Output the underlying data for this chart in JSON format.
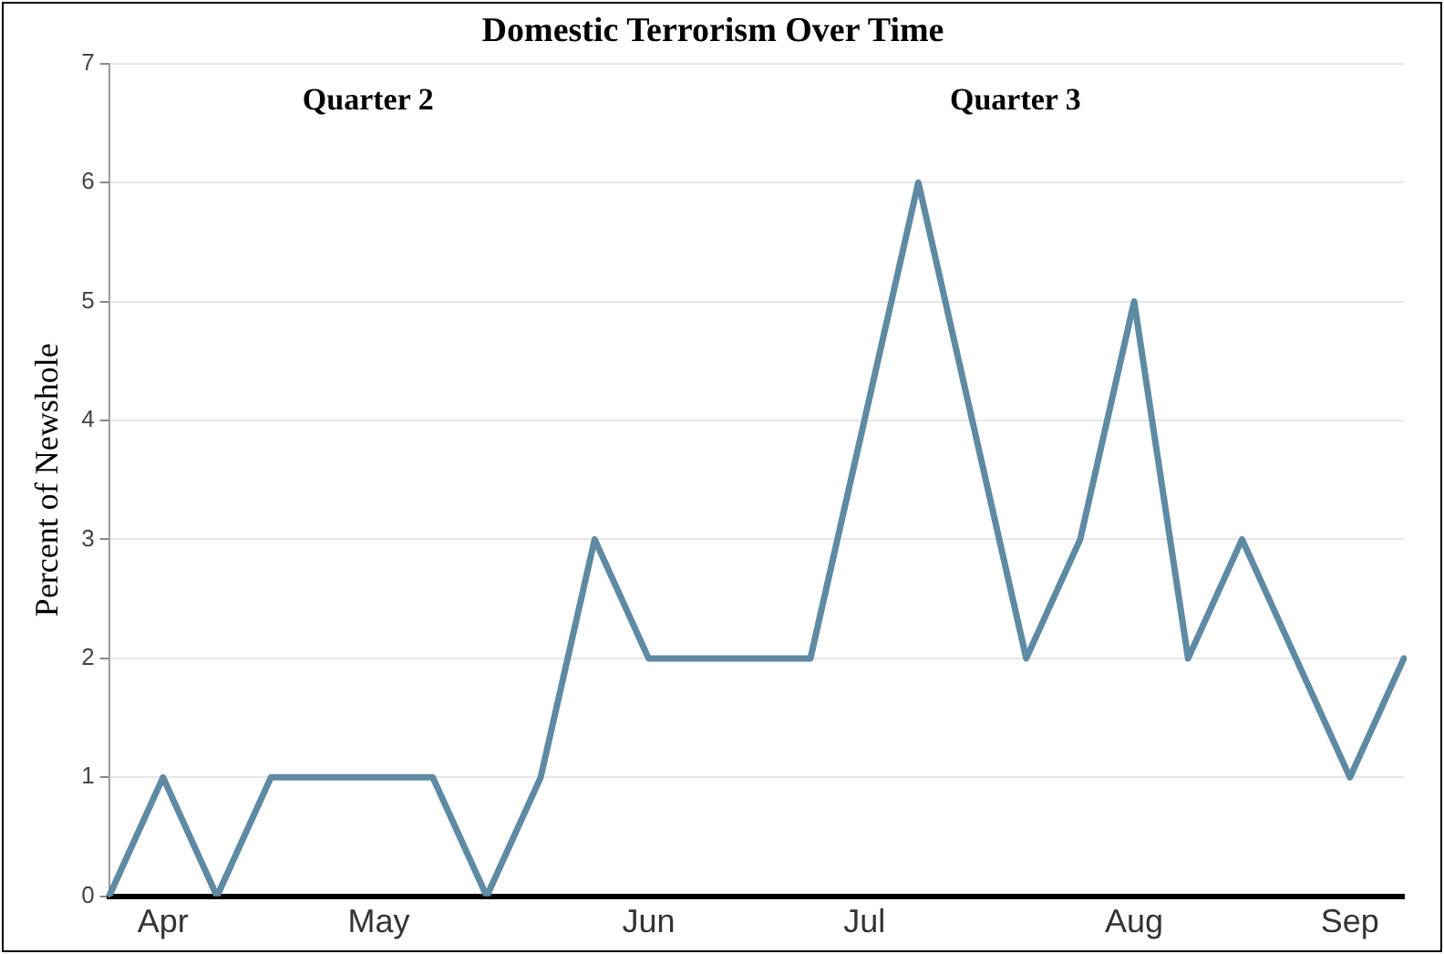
{
  "chart_data": {
    "type": "line",
    "title": "Domestic Terrorism Over Time",
    "ylabel": "Percent of Newshole",
    "categories": [
      null,
      "Apr",
      null,
      null,
      null,
      "May",
      null,
      null,
      null,
      null,
      "Jun",
      null,
      null,
      null,
      "Jul",
      null,
      null,
      null,
      null,
      "Aug",
      null,
      null,
      null,
      "Sep",
      null
    ],
    "series": [
      {
        "color": "#5f8aa3",
        "values": [
          0,
          1,
          0,
          1,
          1,
          1,
          1,
          0,
          1,
          3,
          2,
          2,
          2,
          2,
          4,
          6,
          4,
          2,
          3,
          5,
          2,
          3,
          2,
          1,
          2
        ]
      }
    ],
    "ylim": [
      0,
      7
    ],
    "yticks": [
      0,
      1,
      2,
      3,
      4,
      5,
      6,
      7
    ],
    "grid": "y",
    "legend": false,
    "marker": "none",
    "line_style": "solid",
    "annotations": [
      "Quarter 2",
      "Quarter 3"
    ]
  }
}
